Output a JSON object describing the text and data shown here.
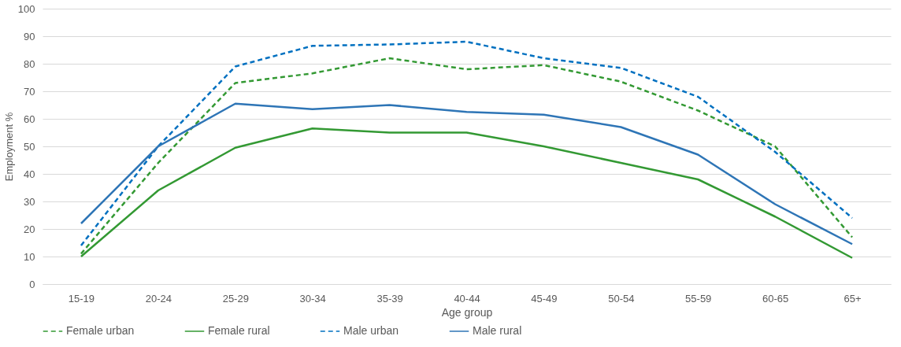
{
  "chart_data": {
    "type": "line",
    "xlabel": "Age group",
    "ylabel": "Employment %",
    "categories": [
      "15-19",
      "20-24",
      "25-29",
      "30-34",
      "35-39",
      "40-44",
      "45-49",
      "50-54",
      "55-59",
      "60-65",
      "65+"
    ],
    "series": [
      {
        "name": "Female urban",
        "color": "#339933",
        "line_style": "dashed",
        "values": [
          11,
          44,
          73,
          76.5,
          82,
          78,
          79.5,
          73.5,
          63,
          50,
          17
        ]
      },
      {
        "name": "Female rural",
        "color": "#339933",
        "line_style": "solid",
        "values": [
          10,
          34,
          49.5,
          56.5,
          55,
          55,
          50,
          44,
          38,
          24.5,
          9.5
        ]
      },
      {
        "name": "Male urban",
        "color": "#0070c0",
        "line_style": "dashed",
        "values": [
          14,
          50,
          79,
          86.5,
          87,
          88,
          82,
          78.5,
          68,
          48,
          24
        ]
      },
      {
        "name": "Male rural",
        "color": "#2e75b6",
        "line_style": "solid",
        "values": [
          22,
          50,
          65.5,
          63.5,
          65,
          62.5,
          61.5,
          57,
          47,
          29,
          14.5
        ]
      }
    ],
    "ylim": [
      0,
      100
    ],
    "yticks": [
      0,
      10,
      20,
      30,
      40,
      50,
      60,
      70,
      80,
      90,
      100
    ],
    "grid": "y",
    "legend": "bottom",
    "marker": "none"
  }
}
